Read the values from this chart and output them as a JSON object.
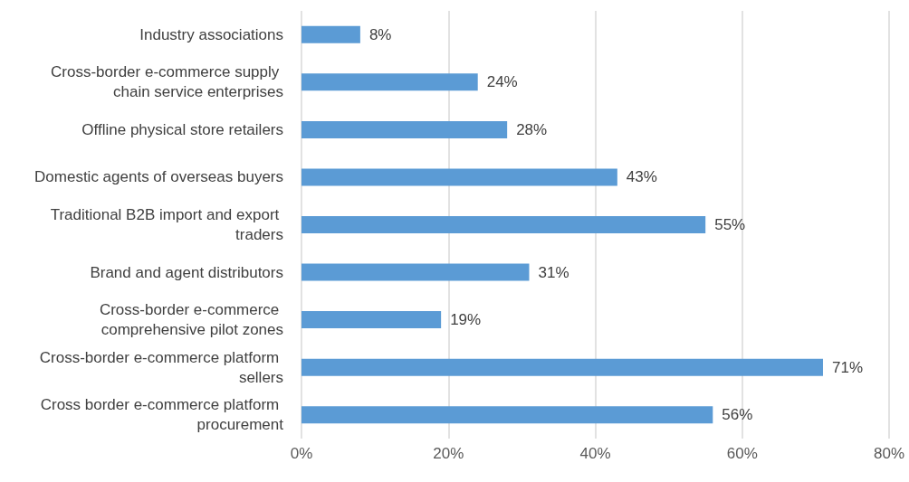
{
  "chart_data": {
    "type": "bar",
    "orientation": "horizontal",
    "categories": [
      "Industry associations",
      "Cross-border e-commerce supply chain service enterprises",
      "Offline physical store retailers",
      "Domestic agents of overseas buyers",
      "Traditional B2B import and export traders",
      "Brand and agent distributors",
      "Cross-border e-commerce comprehensive pilot zones",
      "Cross-border e-commerce platform sellers",
      "Cross border e-commerce platform procurement"
    ],
    "values": [
      8,
      24,
      28,
      43,
      55,
      31,
      19,
      71,
      56
    ],
    "value_labels": [
      "8%",
      "24%",
      "28%",
      "43%",
      "55%",
      "31%",
      "19%",
      "71%",
      "56%"
    ],
    "color": "#5b9bd5",
    "xlim": [
      0,
      80
    ],
    "xticks": [
      {
        "value": 0,
        "label": "0%"
      },
      {
        "value": 20,
        "label": "20%"
      },
      {
        "value": 40,
        "label": "40%"
      },
      {
        "value": 60,
        "label": "60%"
      },
      {
        "value": 80,
        "label": "80%"
      }
    ],
    "grid": "x"
  }
}
